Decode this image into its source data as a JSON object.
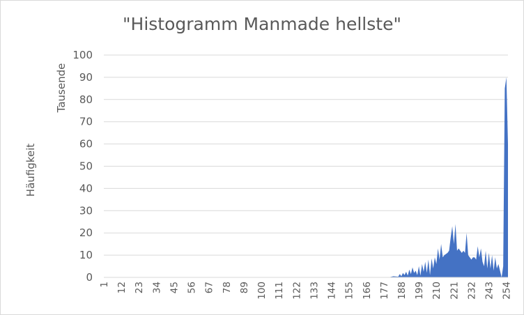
{
  "chart_data": {
    "type": "area",
    "title": "\"Histogramm Manmade hellste\"",
    "ylabel": "Häufigkeit",
    "y_units_label": "Tausende",
    "xlabel": "",
    "ylim": [
      0,
      100
    ],
    "y_ticks": [
      0,
      10,
      20,
      30,
      40,
      50,
      60,
      70,
      80,
      90,
      100
    ],
    "x_tick_labels": [
      "1",
      "12",
      "23",
      "34",
      "45",
      "56",
      "67",
      "78",
      "89",
      "100",
      "111",
      "122",
      "133",
      "144",
      "155",
      "166",
      "177",
      "188",
      "199",
      "210",
      "221",
      "232",
      "243",
      "254"
    ],
    "x_range": [
      1,
      255
    ],
    "grid": true,
    "legend": "none",
    "color": "#4472c4",
    "x": [
      180,
      183,
      186,
      187,
      188,
      189,
      190,
      191,
      192,
      193,
      194,
      195,
      196,
      197,
      198,
      199,
      200,
      201,
      202,
      203,
      204,
      205,
      206,
      207,
      208,
      209,
      210,
      211,
      212,
      213,
      214,
      215,
      216,
      217,
      218,
      219,
      220,
      221,
      222,
      223,
      224,
      225,
      226,
      227,
      228,
      229,
      230,
      231,
      232,
      233,
      234,
      235,
      236,
      237,
      238,
      239,
      240,
      241,
      242,
      243,
      244,
      245,
      246,
      247,
      248,
      249,
      250,
      251,
      252,
      253,
      254,
      255
    ],
    "values": [
      0,
      0.5,
      0.3,
      1.5,
      0.5,
      2,
      1,
      2.5,
      0.8,
      3.5,
      1.5,
      4.5,
      2,
      3,
      1,
      5,
      0.8,
      6,
      2.5,
      7,
      2,
      8,
      1,
      8.5,
      4,
      9,
      6,
      13,
      8,
      15,
      9,
      10,
      10.5,
      11,
      12,
      18,
      23,
      15,
      24,
      12,
      13,
      12,
      11,
      12,
      11,
      20,
      10,
      9,
      8,
      9,
      9,
      8,
      14,
      9,
      13,
      7,
      5,
      12,
      4,
      11,
      4,
      10,
      3,
      9,
      4,
      6,
      3,
      0,
      5,
      85,
      90,
      60
    ]
  }
}
